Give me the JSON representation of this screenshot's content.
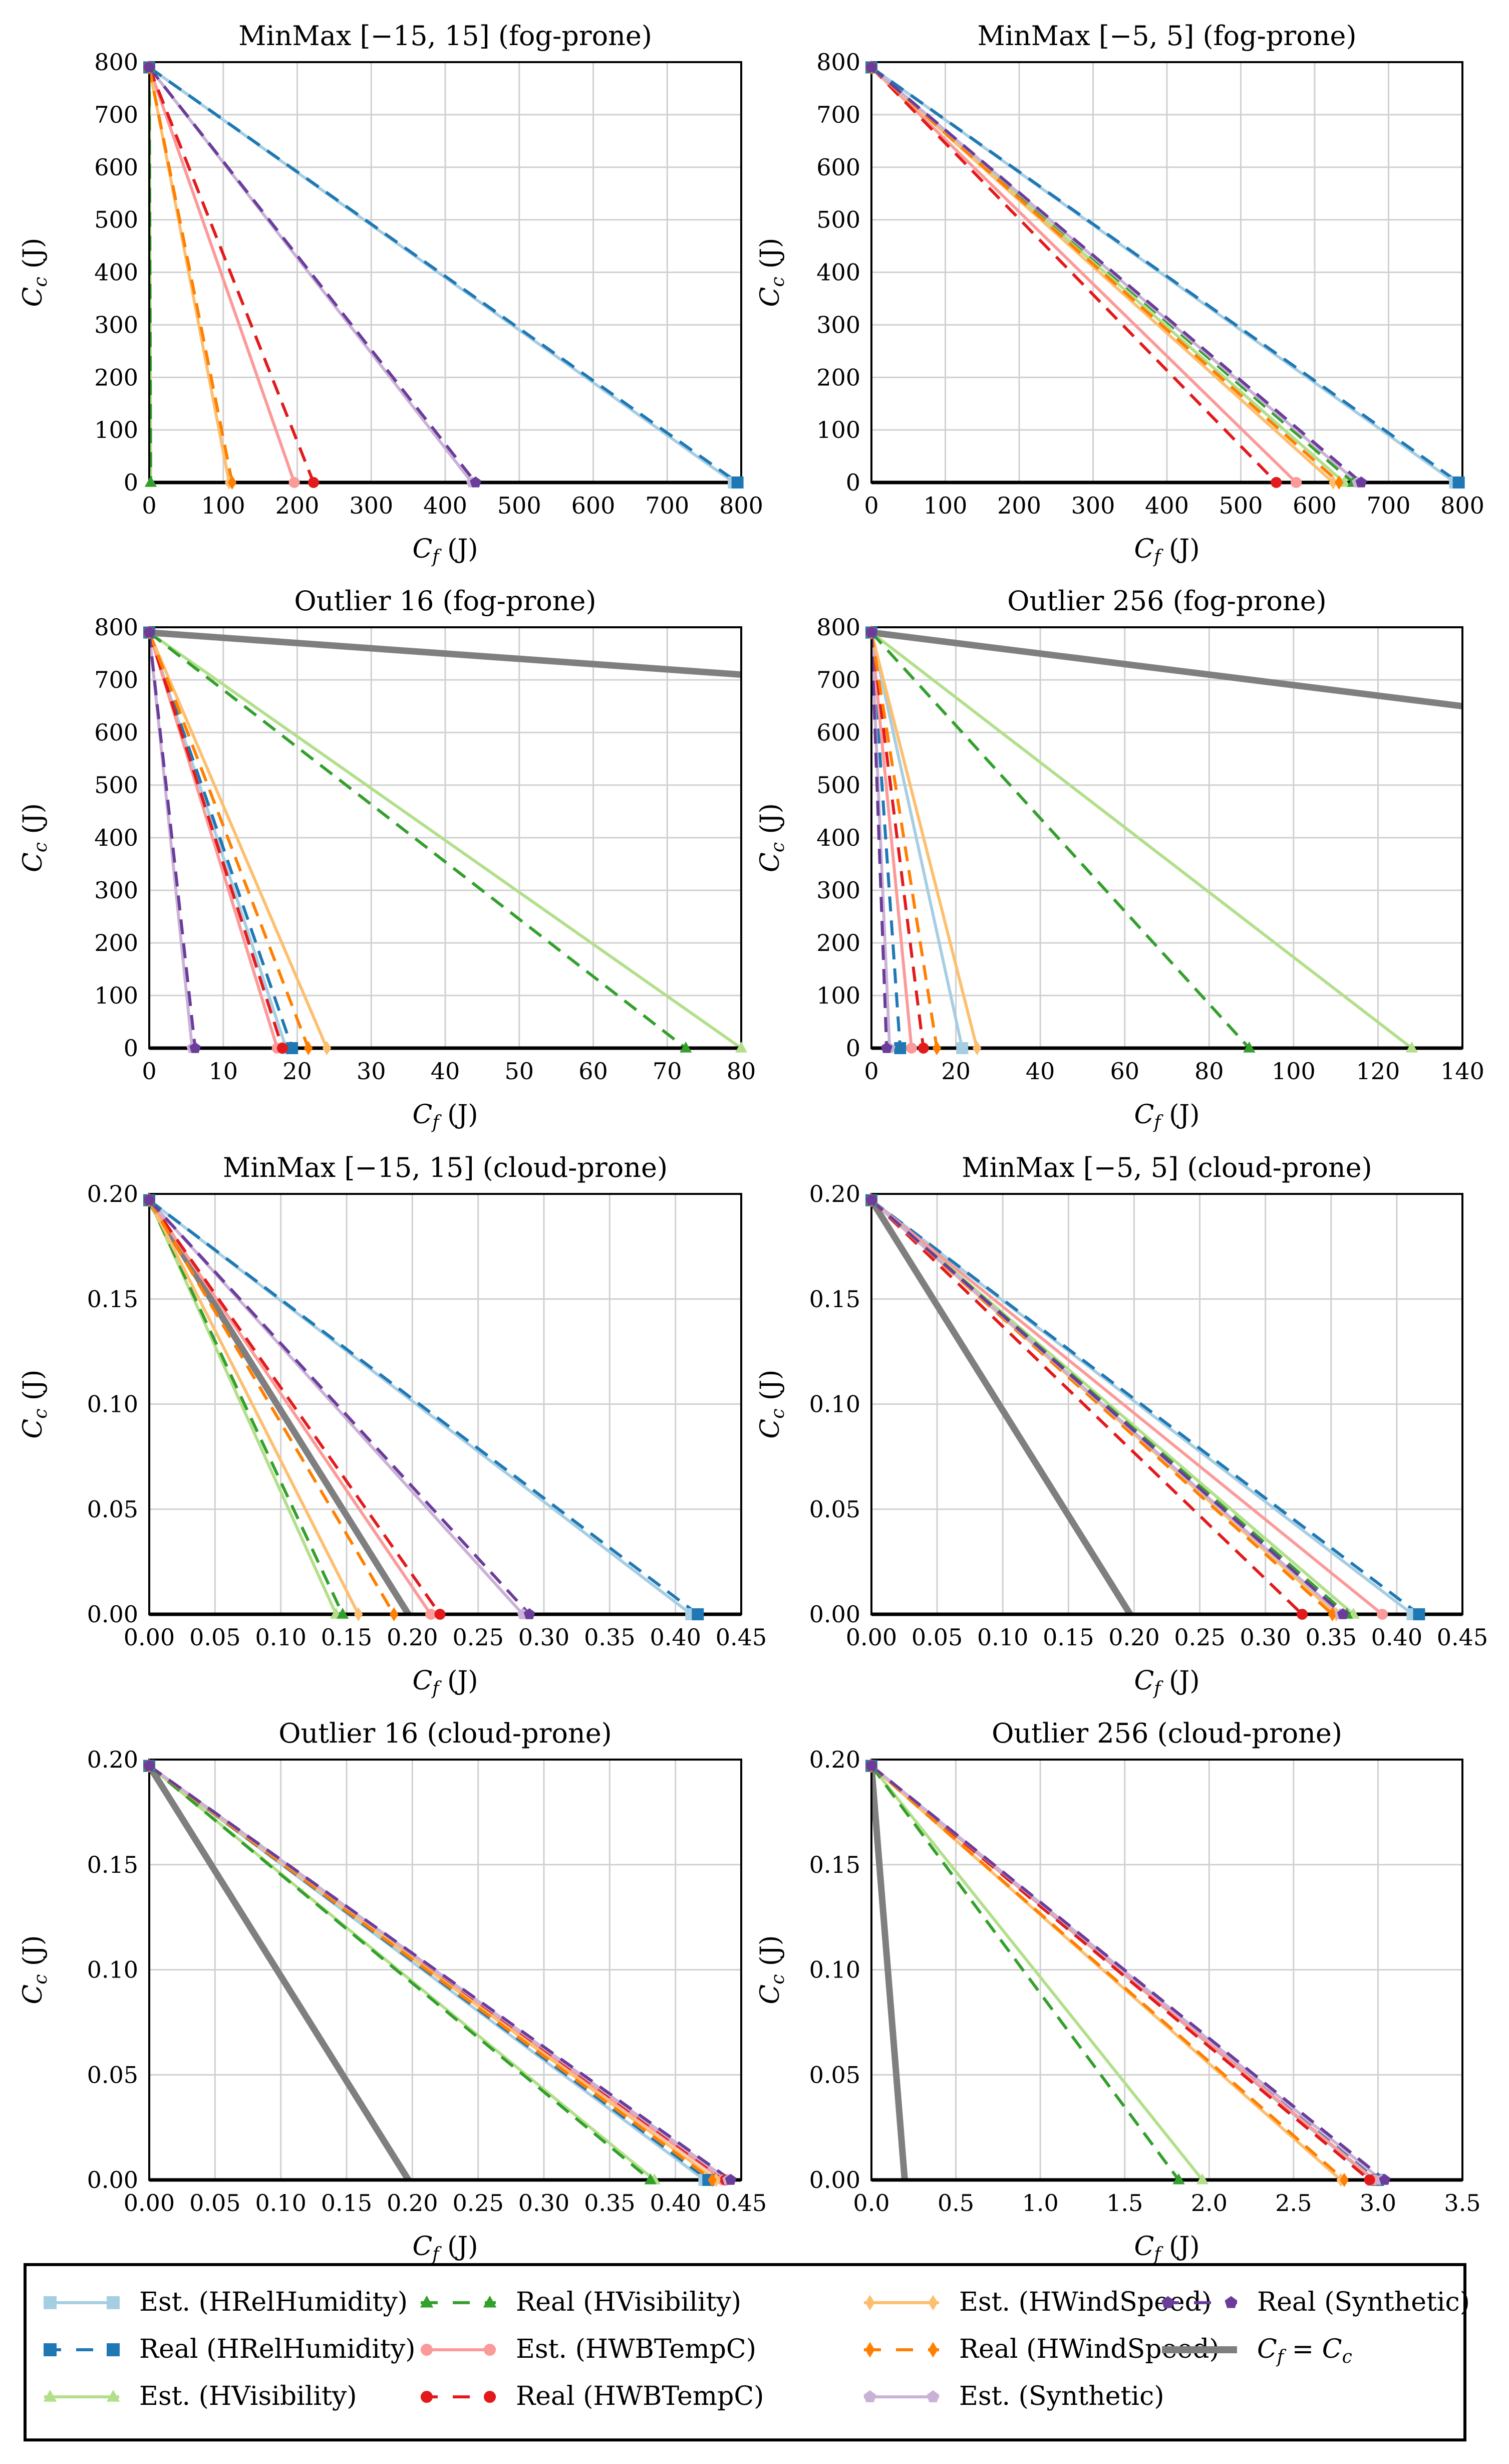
{
  "colors": {
    "hrel_est": "#a6cee3",
    "hrel_real": "#1f78b4",
    "hvis_est": "#b2df8a",
    "hvis_real": "#33a02c",
    "hwbt_est": "#fb9a99",
    "hwbt_real": "#e31a1c",
    "hwind_est": "#fdbf6f",
    "hwind_real": "#ff7f00",
    "syn_est": "#cab2d6",
    "syn_real": "#6a3d9a",
    "diag": "#7f7f7f",
    "grid": "#d0d0d0",
    "axis": "#000000"
  },
  "legend": {
    "items": [
      {
        "label": "Est. (HRelHumidity)",
        "color": "#a6cee3",
        "dash": false,
        "marker": "square"
      },
      {
        "label": "Real (HRelHumidity)",
        "color": "#1f78b4",
        "dash": true,
        "marker": "square"
      },
      {
        "label": "Est. (HVisibility)",
        "color": "#b2df8a",
        "dash": false,
        "marker": "triangle"
      },
      {
        "label": "Real (HVisibility)",
        "color": "#33a02c",
        "dash": true,
        "marker": "triangle"
      },
      {
        "label": "Est. (HWBTempC)",
        "color": "#fb9a99",
        "dash": false,
        "marker": "circle"
      },
      {
        "label": "Real (HWBTempC)",
        "color": "#e31a1c",
        "dash": true,
        "marker": "circle"
      },
      {
        "label": "Est. (HWindSpeed)",
        "color": "#fdbf6f",
        "dash": false,
        "marker": "diamond"
      },
      {
        "label": "Real (HWindSpeed)",
        "color": "#ff7f00",
        "dash": true,
        "marker": "diamond"
      },
      {
        "label": "Est. (Synthetic)",
        "color": "#cab2d6",
        "dash": false,
        "marker": "pentagon"
      },
      {
        "label": "Real (Synthetic)",
        "color": "#6a3d9a",
        "dash": true,
        "marker": "pentagon"
      },
      {
        "label": "Cf = Cc",
        "color": "#7f7f7f",
        "dash": false,
        "marker": "none",
        "diag": true
      }
    ]
  },
  "chart_data": [
    {
      "type": "line",
      "title": "MinMax [−15, 15] (fog-prone)",
      "xlabel": "Cf (J)",
      "ylabel": "Cc (J)",
      "xlim": [
        0,
        800
      ],
      "ylim": [
        0,
        800
      ],
      "xticks": [
        "0",
        "100",
        "200",
        "300",
        "400",
        "500",
        "600",
        "700",
        "800"
      ],
      "yticks": [
        "0",
        "100",
        "200",
        "300",
        "400",
        "500",
        "600",
        "700",
        "800"
      ],
      "y0": 790,
      "series": [
        {
          "name": "Est. (HRelHumidity)",
          "x_intercept": 790
        },
        {
          "name": "Real (HRelHumidity)",
          "x_intercept": 795
        },
        {
          "name": "Est. (HVisibility)",
          "x_intercept": 2
        },
        {
          "name": "Real (HVisibility)",
          "x_intercept": 2
        },
        {
          "name": "Est. (HWBTempC)",
          "x_intercept": 196
        },
        {
          "name": "Real (HWBTempC)",
          "x_intercept": 222
        },
        {
          "name": "Est. (HWindSpeed)",
          "x_intercept": 108
        },
        {
          "name": "Real (HWindSpeed)",
          "x_intercept": 112
        },
        {
          "name": "Est. (Synthetic)",
          "x_intercept": 436
        },
        {
          "name": "Real (Synthetic)",
          "x_intercept": 441
        }
      ],
      "diag_visible": false
    },
    {
      "type": "line",
      "title": "MinMax [−5, 5] (fog-prone)",
      "xlabel": "Cf (J)",
      "ylabel": "Cc (J)",
      "xlim": [
        0,
        800
      ],
      "ylim": [
        0,
        800
      ],
      "xticks": [
        "0",
        "100",
        "200",
        "300",
        "400",
        "500",
        "600",
        "700",
        "800"
      ],
      "yticks": [
        "0",
        "100",
        "200",
        "300",
        "400",
        "500",
        "600",
        "700",
        "800"
      ],
      "y0": 790,
      "series": [
        {
          "name": "Est. (HRelHumidity)",
          "x_intercept": 790
        },
        {
          "name": "Real (HRelHumidity)",
          "x_intercept": 795
        },
        {
          "name": "Est. (HVisibility)",
          "x_intercept": 640
        },
        {
          "name": "Real (HVisibility)",
          "x_intercept": 652
        },
        {
          "name": "Est. (HWBTempC)",
          "x_intercept": 575
        },
        {
          "name": "Real (HWBTempC)",
          "x_intercept": 548
        },
        {
          "name": "Est. (HWindSpeed)",
          "x_intercept": 625
        },
        {
          "name": "Real (HWindSpeed)",
          "x_intercept": 633
        },
        {
          "name": "Est. (Synthetic)",
          "x_intercept": 658
        },
        {
          "name": "Real (Synthetic)",
          "x_intercept": 663
        }
      ],
      "diag_visible": false
    },
    {
      "type": "line",
      "title": "Outlier 16 (fog-prone)",
      "xlabel": "Cf (J)",
      "ylabel": "Cc (J)",
      "xlim": [
        0,
        80
      ],
      "ylim": [
        0,
        800
      ],
      "xticks": [
        "0",
        "10",
        "20",
        "30",
        "40",
        "50",
        "60",
        "70",
        "80"
      ],
      "yticks": [
        "0",
        "100",
        "200",
        "300",
        "400",
        "500",
        "600",
        "700",
        "800"
      ],
      "y0": 790,
      "series": [
        {
          "name": "Est. (HRelHumidity)",
          "x_intercept": 18.5
        },
        {
          "name": "Real (HRelHumidity)",
          "x_intercept": 19.3
        },
        {
          "name": "Est. (HVisibility)",
          "x_intercept": 80
        },
        {
          "name": "Real (HVisibility)",
          "x_intercept": 72.5
        },
        {
          "name": "Est. (HWBTempC)",
          "x_intercept": 17.3
        },
        {
          "name": "Real (HWBTempC)",
          "x_intercept": 18.0
        },
        {
          "name": "Est. (HWindSpeed)",
          "x_intercept": 24.0
        },
        {
          "name": "Real (HWindSpeed)",
          "x_intercept": 21.5
        },
        {
          "name": "Est. (Synthetic)",
          "x_intercept": 5.8
        },
        {
          "name": "Real (Synthetic)",
          "x_intercept": 6.2
        }
      ],
      "diag_visible": true
    },
    {
      "type": "line",
      "title": "Outlier 256 (fog-prone)",
      "xlabel": "Cf (J)",
      "ylabel": "Cc (J)",
      "xlim": [
        0,
        140
      ],
      "ylim": [
        0,
        800
      ],
      "xticks": [
        "0",
        "20",
        "40",
        "60",
        "80",
        "100",
        "120",
        "140"
      ],
      "yticks": [
        "0",
        "100",
        "200",
        "300",
        "400",
        "500",
        "600",
        "700",
        "800"
      ],
      "y0": 790,
      "series": [
        {
          "name": "Est. (HRelHumidity)",
          "x_intercept": 21.5
        },
        {
          "name": "Real (HRelHumidity)",
          "x_intercept": 6.8
        },
        {
          "name": "Est. (HVisibility)",
          "x_intercept": 128
        },
        {
          "name": "Real (HVisibility)",
          "x_intercept": 89.5
        },
        {
          "name": "Est. (HWBTempC)",
          "x_intercept": 9.5
        },
        {
          "name": "Real (HWBTempC)",
          "x_intercept": 12.3
        },
        {
          "name": "Est. (HWindSpeed)",
          "x_intercept": 25.0
        },
        {
          "name": "Real (HWindSpeed)",
          "x_intercept": 15.5
        },
        {
          "name": "Est. (Synthetic)",
          "x_intercept": 4.3
        },
        {
          "name": "Real (Synthetic)",
          "x_intercept": 3.6
        }
      ],
      "diag_visible": true
    },
    {
      "type": "line",
      "title": "MinMax [−15, 15] (cloud-prone)",
      "xlabel": "Cf (J)",
      "ylabel": "Cc (J)",
      "xlim": [
        0,
        0.45
      ],
      "ylim": [
        0,
        0.2
      ],
      "xticks": [
        "0.00",
        "0.05",
        "0.10",
        "0.15",
        "0.20",
        "0.25",
        "0.30",
        "0.35",
        "0.40",
        "0.45"
      ],
      "yticks": [
        "0.00",
        "0.05",
        "0.10",
        "0.15",
        "0.20"
      ],
      "y0": 0.197,
      "series": [
        {
          "name": "Est. (HRelHumidity)",
          "x_intercept": 0.412
        },
        {
          "name": "Real (HRelHumidity)",
          "x_intercept": 0.417
        },
        {
          "name": "Est. (HVisibility)",
          "x_intercept": 0.142
        },
        {
          "name": "Real (HVisibility)",
          "x_intercept": 0.147
        },
        {
          "name": "Est. (HWBTempC)",
          "x_intercept": 0.214
        },
        {
          "name": "Real (HWBTempC)",
          "x_intercept": 0.221
        },
        {
          "name": "Est. (HWindSpeed)",
          "x_intercept": 0.159
        },
        {
          "name": "Real (HWindSpeed)",
          "x_intercept": 0.186
        },
        {
          "name": "Est. (Synthetic)",
          "x_intercept": 0.284
        },
        {
          "name": "Real (Synthetic)",
          "x_intercept": 0.289
        }
      ],
      "diag_visible": true
    },
    {
      "type": "line",
      "title": "MinMax [−5, 5] (cloud-prone)",
      "xlabel": "Cf (J)",
      "ylabel": "Cc (J)",
      "xlim": [
        0,
        0.45
      ],
      "ylim": [
        0,
        0.2
      ],
      "xticks": [
        "0.00",
        "0.05",
        "0.10",
        "0.15",
        "0.20",
        "0.25",
        "0.30",
        "0.35",
        "0.40",
        "0.45"
      ],
      "yticks": [
        "0.00",
        "0.05",
        "0.10",
        "0.15",
        "0.20"
      ],
      "y0": 0.197,
      "series": [
        {
          "name": "Est. (HRelHumidity)",
          "x_intercept": 0.412
        },
        {
          "name": "Real (HRelHumidity)",
          "x_intercept": 0.417
        },
        {
          "name": "Est. (HVisibility)",
          "x_intercept": 0.367
        },
        {
          "name": "Real (HVisibility)",
          "x_intercept": 0.362
        },
        {
          "name": "Est. (HWBTempC)",
          "x_intercept": 0.389
        },
        {
          "name": "Real (HWBTempC)",
          "x_intercept": 0.328
        },
        {
          "name": "Est. (HWindSpeed)",
          "x_intercept": 0.354
        },
        {
          "name": "Real (HWindSpeed)",
          "x_intercept": 0.351
        },
        {
          "name": "Est. (Synthetic)",
          "x_intercept": 0.357
        },
        {
          "name": "Real (Synthetic)",
          "x_intercept": 0.359
        }
      ],
      "diag_visible": true
    },
    {
      "type": "line",
      "title": "Outlier 16 (cloud-prone)",
      "xlabel": "Cf (J)",
      "ylabel": "Cc (J)",
      "xlim": [
        0,
        0.45
      ],
      "ylim": [
        0,
        0.2
      ],
      "xticks": [
        "0.00",
        "0.05",
        "0.10",
        "0.15",
        "0.20",
        "0.25",
        "0.30",
        "0.35",
        "0.40",
        "0.45"
      ],
      "yticks": [
        "0.00",
        "0.05",
        "0.10",
        "0.15",
        "0.20"
      ],
      "y0": 0.197,
      "series": [
        {
          "name": "Est. (HRelHumidity)",
          "x_intercept": 0.422
        },
        {
          "name": "Real (HRelHumidity)",
          "x_intercept": 0.425
        },
        {
          "name": "Est. (HVisibility)",
          "x_intercept": 0.384
        },
        {
          "name": "Real (HVisibility)",
          "x_intercept": 0.381
        },
        {
          "name": "Est. (HWBTempC)",
          "x_intercept": 0.436
        },
        {
          "name": "Real (HWBTempC)",
          "x_intercept": 0.438
        },
        {
          "name": "Est. (HWindSpeed)",
          "x_intercept": 0.431
        },
        {
          "name": "Real (HWindSpeed)",
          "x_intercept": 0.428
        },
        {
          "name": "Est. (Synthetic)",
          "x_intercept": 0.44
        },
        {
          "name": "Real (Synthetic)",
          "x_intercept": 0.442
        }
      ],
      "diag_visible": true
    },
    {
      "type": "line",
      "title": "Outlier 256 (cloud-prone)",
      "xlabel": "Cf (J)",
      "ylabel": "Cc (J)",
      "xlim": [
        0,
        3.5
      ],
      "ylim": [
        0,
        0.2
      ],
      "xticks": [
        "0.0",
        "0.5",
        "1.0",
        "1.5",
        "2.0",
        "2.5",
        "3.0",
        "3.5"
      ],
      "yticks": [
        "0.00",
        "0.05",
        "0.10",
        "0.15",
        "0.20"
      ],
      "y0": 0.197,
      "series": [
        {
          "name": "Est. (HRelHumidity)",
          "x_intercept": 2.97
        },
        {
          "name": "Real (HRelHumidity)",
          "x_intercept": 3.0
        },
        {
          "name": "Est. (HVisibility)",
          "x_intercept": 1.96
        },
        {
          "name": "Real (HVisibility)",
          "x_intercept": 1.82
        },
        {
          "name": "Est. (HWBTempC)",
          "x_intercept": 2.98
        },
        {
          "name": "Real (HWBTempC)",
          "x_intercept": 2.95
        },
        {
          "name": "Est. (HWindSpeed)",
          "x_intercept": 2.78
        },
        {
          "name": "Real (HWindSpeed)",
          "x_intercept": 2.8
        },
        {
          "name": "Est. (Synthetic)",
          "x_intercept": 3.02
        },
        {
          "name": "Real (Synthetic)",
          "x_intercept": 3.04
        }
      ],
      "diag_visible": true
    }
  ]
}
